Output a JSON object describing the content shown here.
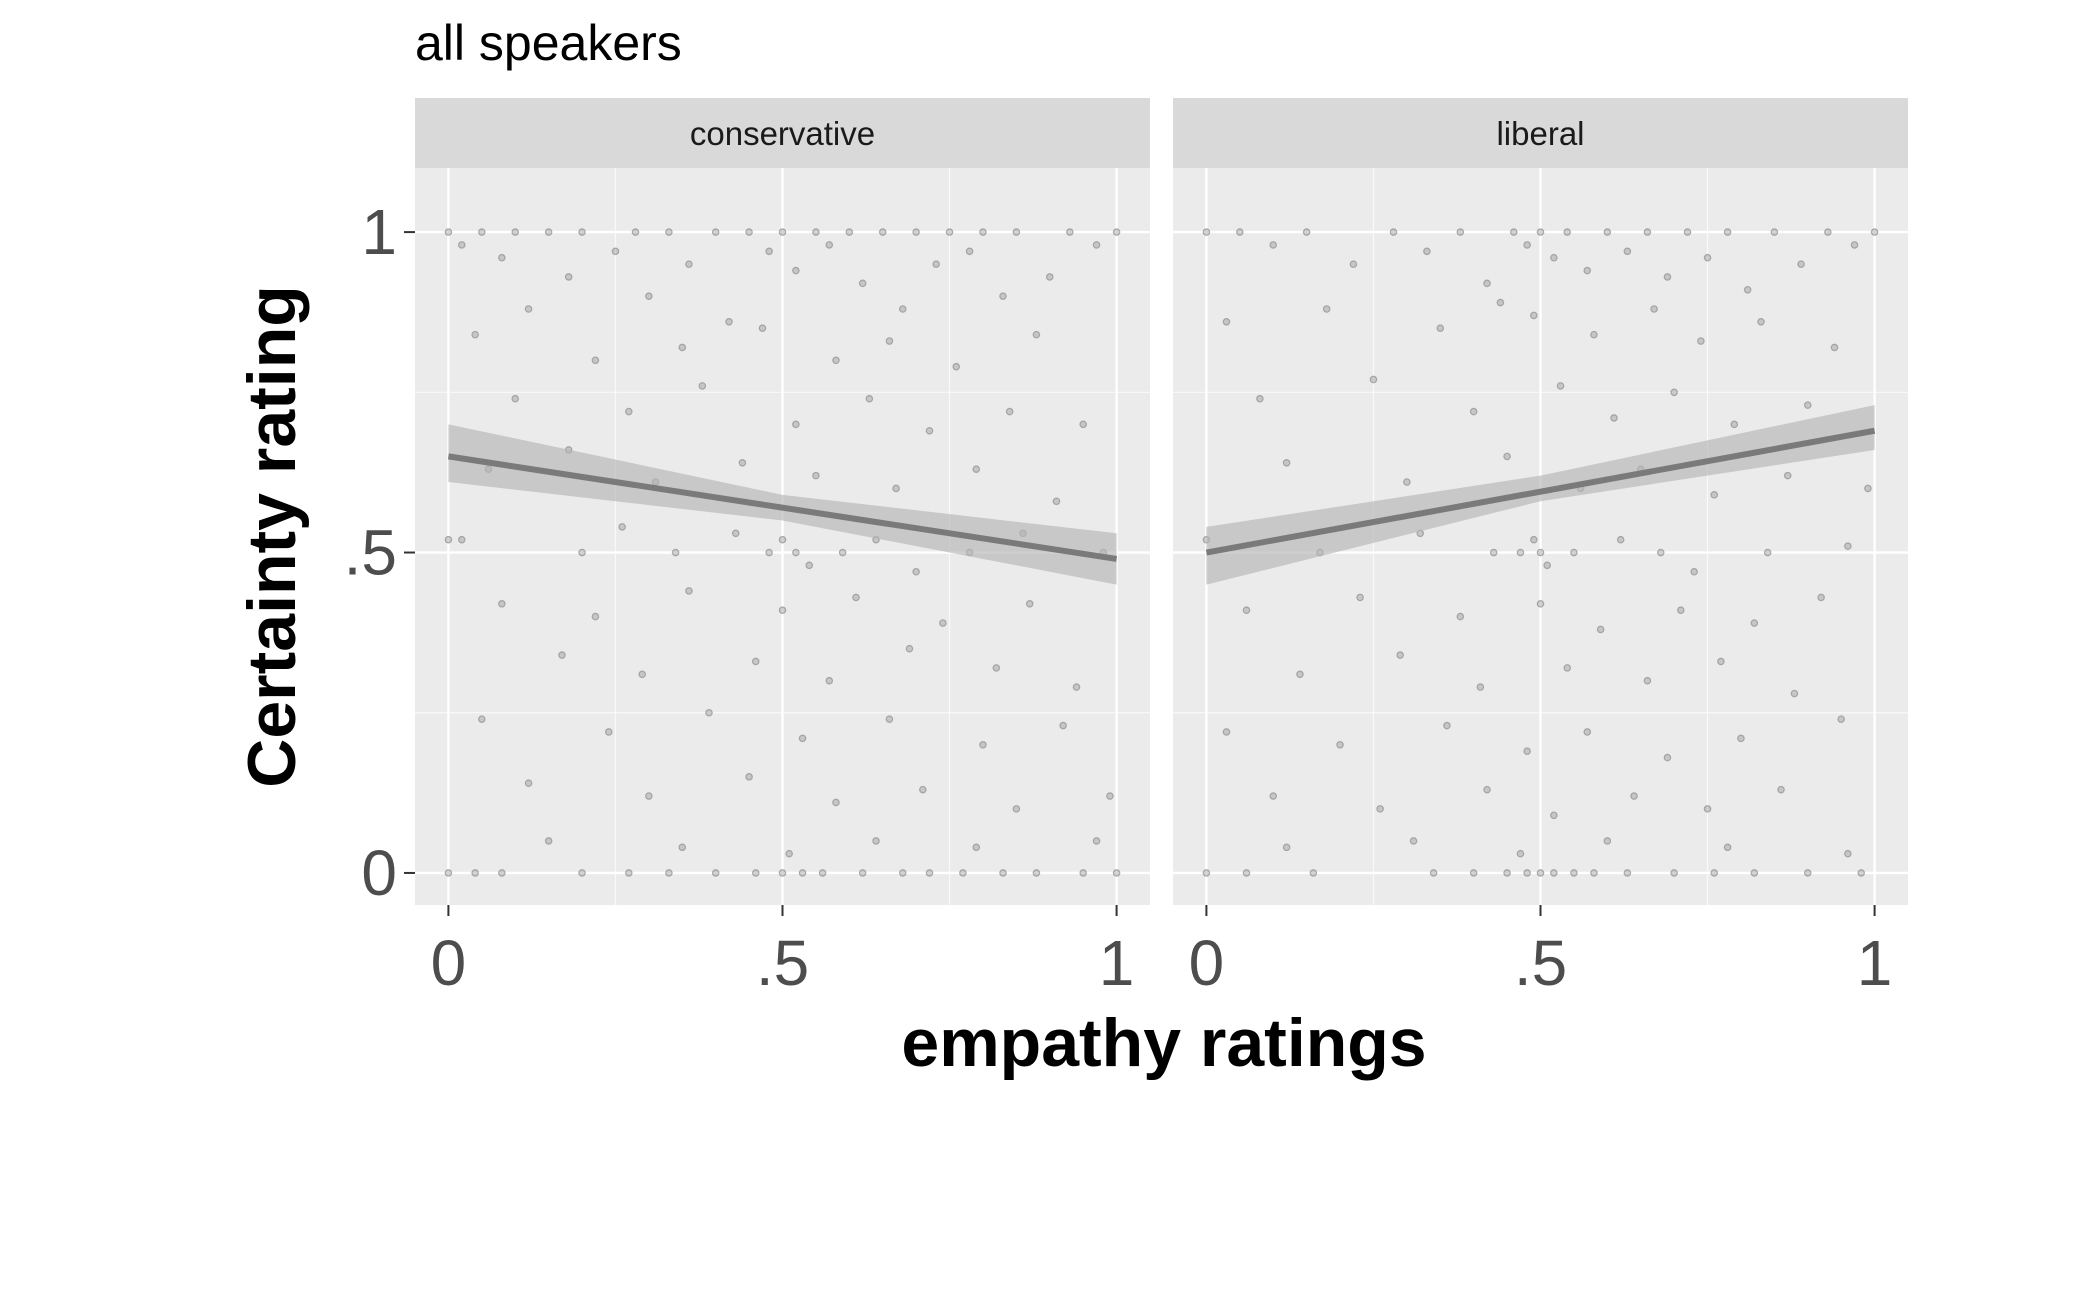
{
  "chart_data": {
    "type": "scatter",
    "subtitle": "all speakers",
    "xlabel": "empathy ratings",
    "ylabel": "Certainty rating",
    "xlim": [
      -0.05,
      1.05
    ],
    "ylim": [
      -0.05,
      1.1
    ],
    "x_ticks": [
      0,
      0.5,
      1
    ],
    "y_ticks": [
      0,
      0.5,
      1
    ],
    "x_tick_labels": [
      "0",
      ".5",
      "1"
    ],
    "y_tick_labels": [
      "0",
      ".5",
      "1"
    ],
    "grid": true,
    "colors": {
      "panel_bg": "#ebebeb",
      "strip_bg": "#d9d9d9",
      "grid": "#ffffff",
      "points": "#808080",
      "line": "#7a7a7a",
      "ribbon": "#b5b5b5"
    },
    "panels": [
      {
        "name": "conservative",
        "trend": {
          "x": [
            0,
            1
          ],
          "y": [
            0.65,
            0.49
          ]
        },
        "ci_upper": {
          "x": [
            0,
            0.5,
            1
          ],
          "y": [
            0.7,
            0.59,
            0.53
          ]
        },
        "ci_lower": {
          "x": [
            0,
            0.5,
            1
          ],
          "y": [
            0.61,
            0.55,
            0.45
          ]
        },
        "points": [
          [
            0.0,
            1.0
          ],
          [
            0.02,
            0.98
          ],
          [
            0.05,
            1.0
          ],
          [
            0.08,
            0.96
          ],
          [
            0.1,
            1.0
          ],
          [
            0.12,
            0.88
          ],
          [
            0.15,
            1.0
          ],
          [
            0.18,
            0.93
          ],
          [
            0.2,
            1.0
          ],
          [
            0.25,
            0.97
          ],
          [
            0.28,
            1.0
          ],
          [
            0.3,
            0.9
          ],
          [
            0.33,
            1.0
          ],
          [
            0.36,
            0.95
          ],
          [
            0.4,
            1.0
          ],
          [
            0.42,
            0.86
          ],
          [
            0.45,
            1.0
          ],
          [
            0.48,
            0.97
          ],
          [
            0.5,
            1.0
          ],
          [
            0.52,
            0.94
          ],
          [
            0.55,
            1.0
          ],
          [
            0.57,
            0.98
          ],
          [
            0.6,
            1.0
          ],
          [
            0.62,
            0.92
          ],
          [
            0.65,
            1.0
          ],
          [
            0.68,
            0.88
          ],
          [
            0.7,
            1.0
          ],
          [
            0.73,
            0.95
          ],
          [
            0.75,
            1.0
          ],
          [
            0.78,
            0.97
          ],
          [
            0.8,
            1.0
          ],
          [
            0.83,
            0.9
          ],
          [
            0.85,
            1.0
          ],
          [
            0.9,
            0.93
          ],
          [
            0.93,
            1.0
          ],
          [
            0.97,
            0.98
          ],
          [
            1.0,
            1.0
          ],
          [
            0.04,
            0.84
          ],
          [
            0.22,
            0.8
          ],
          [
            0.35,
            0.82
          ],
          [
            0.47,
            0.85
          ],
          [
            0.58,
            0.8
          ],
          [
            0.66,
            0.83
          ],
          [
            0.76,
            0.79
          ],
          [
            0.88,
            0.84
          ],
          [
            0.1,
            0.74
          ],
          [
            0.27,
            0.72
          ],
          [
            0.38,
            0.76
          ],
          [
            0.52,
            0.7
          ],
          [
            0.63,
            0.74
          ],
          [
            0.72,
            0.69
          ],
          [
            0.84,
            0.72
          ],
          [
            0.95,
            0.7
          ],
          [
            0.06,
            0.63
          ],
          [
            0.18,
            0.66
          ],
          [
            0.31,
            0.61
          ],
          [
            0.44,
            0.64
          ],
          [
            0.55,
            0.62
          ],
          [
            0.67,
            0.6
          ],
          [
            0.79,
            0.63
          ],
          [
            0.91,
            0.58
          ],
          [
            0.0,
            0.52
          ],
          [
            0.02,
            0.52
          ],
          [
            0.2,
            0.5
          ],
          [
            0.26,
            0.54
          ],
          [
            0.34,
            0.5
          ],
          [
            0.43,
            0.53
          ],
          [
            0.48,
            0.5
          ],
          [
            0.5,
            0.52
          ],
          [
            0.52,
            0.5
          ],
          [
            0.54,
            0.48
          ],
          [
            0.59,
            0.5
          ],
          [
            0.64,
            0.52
          ],
          [
            0.7,
            0.47
          ],
          [
            0.78,
            0.5
          ],
          [
            0.86,
            0.53
          ],
          [
            0.98,
            0.5
          ],
          [
            0.08,
            0.42
          ],
          [
            0.22,
            0.4
          ],
          [
            0.36,
            0.44
          ],
          [
            0.5,
            0.41
          ],
          [
            0.61,
            0.43
          ],
          [
            0.74,
            0.39
          ],
          [
            0.87,
            0.42
          ],
          [
            0.17,
            0.34
          ],
          [
            0.29,
            0.31
          ],
          [
            0.46,
            0.33
          ],
          [
            0.57,
            0.3
          ],
          [
            0.69,
            0.35
          ],
          [
            0.82,
            0.32
          ],
          [
            0.94,
            0.29
          ],
          [
            0.05,
            0.24
          ],
          [
            0.24,
            0.22
          ],
          [
            0.39,
            0.25
          ],
          [
            0.53,
            0.21
          ],
          [
            0.66,
            0.24
          ],
          [
            0.8,
            0.2
          ],
          [
            0.92,
            0.23
          ],
          [
            0.12,
            0.14
          ],
          [
            0.3,
            0.12
          ],
          [
            0.45,
            0.15
          ],
          [
            0.58,
            0.11
          ],
          [
            0.71,
            0.13
          ],
          [
            0.85,
            0.1
          ],
          [
            0.99,
            0.12
          ],
          [
            0.0,
            0.0
          ],
          [
            0.04,
            0.0
          ],
          [
            0.08,
            0.0
          ],
          [
            0.2,
            0.0
          ],
          [
            0.27,
            0.0
          ],
          [
            0.33,
            0.0
          ],
          [
            0.4,
            0.0
          ],
          [
            0.46,
            0.0
          ],
          [
            0.5,
            0.0
          ],
          [
            0.53,
            0.0
          ],
          [
            0.56,
            0.0
          ],
          [
            0.62,
            0.0
          ],
          [
            0.68,
            0.0
          ],
          [
            0.72,
            0.0
          ],
          [
            0.77,
            0.0
          ],
          [
            0.83,
            0.0
          ],
          [
            0.88,
            0.0
          ],
          [
            0.95,
            0.0
          ],
          [
            1.0,
            0.0
          ],
          [
            0.15,
            0.05
          ],
          [
            0.35,
            0.04
          ],
          [
            0.51,
            0.03
          ],
          [
            0.64,
            0.05
          ],
          [
            0.79,
            0.04
          ],
          [
            0.97,
            0.05
          ]
        ]
      },
      {
        "name": "liberal",
        "trend": {
          "x": [
            0,
            1
          ],
          "y": [
            0.5,
            0.69
          ]
        },
        "ci_upper": {
          "x": [
            0,
            0.5,
            1
          ],
          "y": [
            0.54,
            0.62,
            0.73
          ]
        },
        "ci_lower": {
          "x": [
            0,
            0.5,
            1
          ],
          "y": [
            0.45,
            0.58,
            0.66
          ]
        },
        "points": [
          [
            0.0,
            1.0
          ],
          [
            0.05,
            1.0
          ],
          [
            0.1,
            0.98
          ],
          [
            0.15,
            1.0
          ],
          [
            0.22,
            0.95
          ],
          [
            0.28,
            1.0
          ],
          [
            0.33,
            0.97
          ],
          [
            0.38,
            1.0
          ],
          [
            0.42,
            0.92
          ],
          [
            0.46,
            1.0
          ],
          [
            0.48,
            0.98
          ],
          [
            0.5,
            1.0
          ],
          [
            0.52,
            0.96
          ],
          [
            0.54,
            1.0
          ],
          [
            0.57,
            0.94
          ],
          [
            0.6,
            1.0
          ],
          [
            0.63,
            0.97
          ],
          [
            0.66,
            1.0
          ],
          [
            0.69,
            0.93
          ],
          [
            0.72,
            1.0
          ],
          [
            0.75,
            0.96
          ],
          [
            0.78,
            1.0
          ],
          [
            0.81,
            0.91
          ],
          [
            0.85,
            1.0
          ],
          [
            0.89,
            0.95
          ],
          [
            0.93,
            1.0
          ],
          [
            0.97,
            0.98
          ],
          [
            1.0,
            1.0
          ],
          [
            0.03,
            0.86
          ],
          [
            0.18,
            0.88
          ],
          [
            0.35,
            0.85
          ],
          [
            0.44,
            0.89
          ],
          [
            0.49,
            0.87
          ],
          [
            0.58,
            0.84
          ],
          [
            0.67,
            0.88
          ],
          [
            0.74,
            0.83
          ],
          [
            0.83,
            0.86
          ],
          [
            0.94,
            0.82
          ],
          [
            0.08,
            0.74
          ],
          [
            0.25,
            0.77
          ],
          [
            0.4,
            0.72
          ],
          [
            0.53,
            0.76
          ],
          [
            0.61,
            0.71
          ],
          [
            0.7,
            0.75
          ],
          [
            0.79,
            0.7
          ],
          [
            0.9,
            0.73
          ],
          [
            0.12,
            0.64
          ],
          [
            0.3,
            0.61
          ],
          [
            0.45,
            0.65
          ],
          [
            0.56,
            0.6
          ],
          [
            0.65,
            0.63
          ],
          [
            0.76,
            0.59
          ],
          [
            0.87,
            0.62
          ],
          [
            0.99,
            0.6
          ],
          [
            0.0,
            0.52
          ],
          [
            0.17,
            0.5
          ],
          [
            0.32,
            0.53
          ],
          [
            0.43,
            0.5
          ],
          [
            0.47,
            0.5
          ],
          [
            0.49,
            0.52
          ],
          [
            0.5,
            0.5
          ],
          [
            0.51,
            0.48
          ],
          [
            0.55,
            0.5
          ],
          [
            0.62,
            0.52
          ],
          [
            0.68,
            0.5
          ],
          [
            0.73,
            0.47
          ],
          [
            0.84,
            0.5
          ],
          [
            0.96,
            0.51
          ],
          [
            0.06,
            0.41
          ],
          [
            0.23,
            0.43
          ],
          [
            0.38,
            0.4
          ],
          [
            0.5,
            0.42
          ],
          [
            0.59,
            0.38
          ],
          [
            0.71,
            0.41
          ],
          [
            0.82,
            0.39
          ],
          [
            0.92,
            0.43
          ],
          [
            0.14,
            0.31
          ],
          [
            0.29,
            0.34
          ],
          [
            0.41,
            0.29
          ],
          [
            0.54,
            0.32
          ],
          [
            0.66,
            0.3
          ],
          [
            0.77,
            0.33
          ],
          [
            0.88,
            0.28
          ],
          [
            0.03,
            0.22
          ],
          [
            0.2,
            0.2
          ],
          [
            0.36,
            0.23
          ],
          [
            0.48,
            0.19
          ],
          [
            0.57,
            0.22
          ],
          [
            0.69,
            0.18
          ],
          [
            0.8,
            0.21
          ],
          [
            0.95,
            0.24
          ],
          [
            0.1,
            0.12
          ],
          [
            0.26,
            0.1
          ],
          [
            0.42,
            0.13
          ],
          [
            0.52,
            0.09
          ],
          [
            0.64,
            0.12
          ],
          [
            0.75,
            0.1
          ],
          [
            0.86,
            0.13
          ],
          [
            0.0,
            0.0
          ],
          [
            0.06,
            0.0
          ],
          [
            0.16,
            0.0
          ],
          [
            0.34,
            0.0
          ],
          [
            0.4,
            0.0
          ],
          [
            0.45,
            0.0
          ],
          [
            0.48,
            0.0
          ],
          [
            0.5,
            0.0
          ],
          [
            0.52,
            0.0
          ],
          [
            0.55,
            0.0
          ],
          [
            0.58,
            0.0
          ],
          [
            0.63,
            0.0
          ],
          [
            0.7,
            0.0
          ],
          [
            0.76,
            0.0
          ],
          [
            0.82,
            0.0
          ],
          [
            0.9,
            0.0
          ],
          [
            0.98,
            0.0
          ],
          [
            0.12,
            0.04
          ],
          [
            0.31,
            0.05
          ],
          [
            0.47,
            0.03
          ],
          [
            0.6,
            0.05
          ],
          [
            0.78,
            0.04
          ],
          [
            0.96,
            0.03
          ]
        ]
      }
    ]
  }
}
